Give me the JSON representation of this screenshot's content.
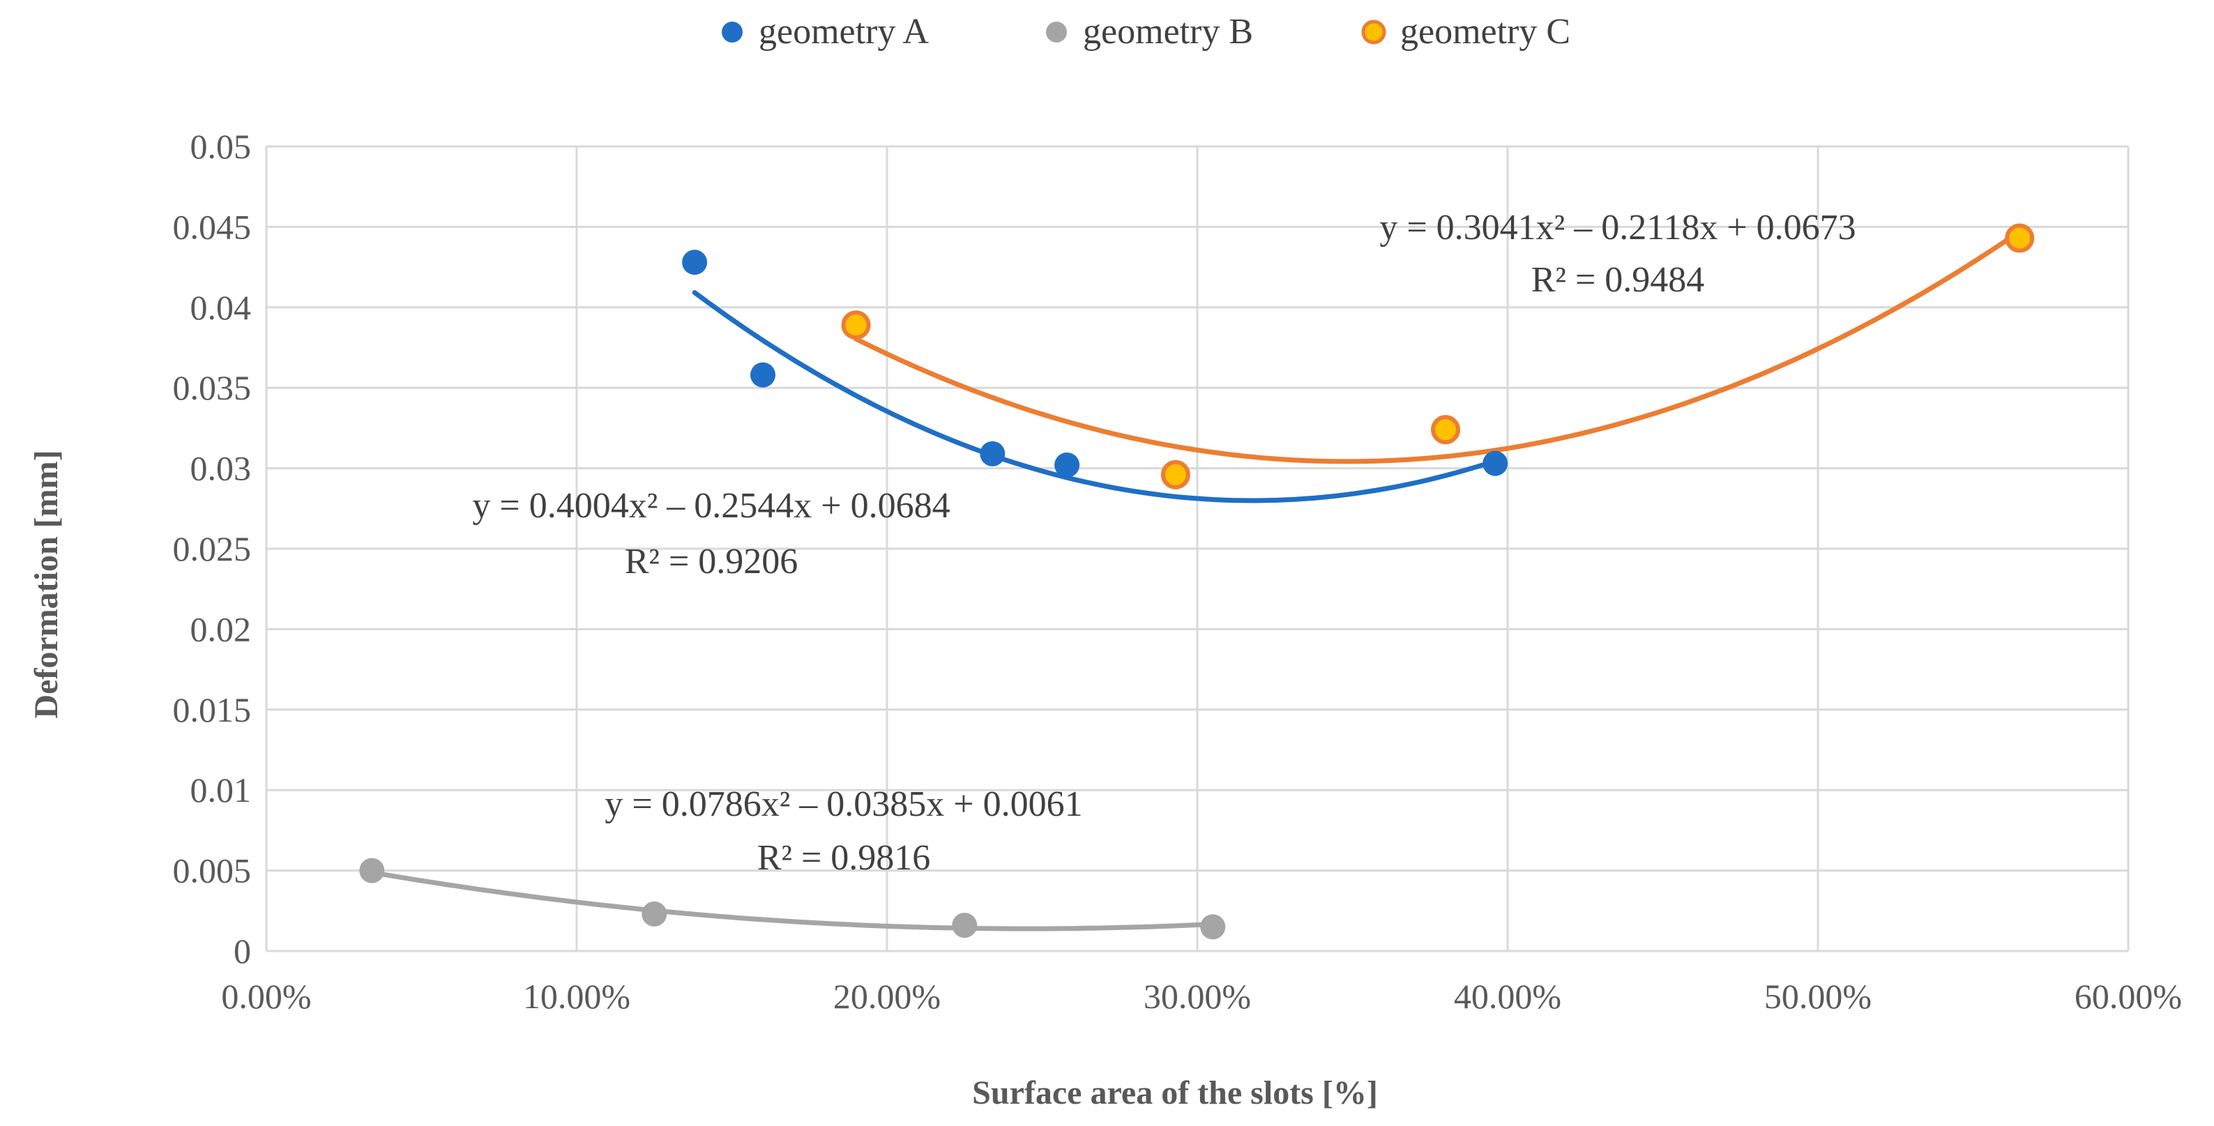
{
  "chart_data": {
    "type": "scatter",
    "title": "",
    "xlabel": "Surface area of the slots [%]",
    "ylabel": "Deformation [mm]",
    "xlim": [
      0,
      0.6
    ],
    "ylim": [
      0,
      0.05
    ],
    "x_ticks": [
      0,
      0.1,
      0.2,
      0.3,
      0.4,
      0.5,
      0.6
    ],
    "x_tick_labels": [
      "0.00%",
      "10.00%",
      "20.00%",
      "30.00%",
      "40.00%",
      "50.00%",
      "60.00%"
    ],
    "y_ticks": [
      0,
      0.005,
      0.01,
      0.015,
      0.02,
      0.025,
      0.03,
      0.035,
      0.04,
      0.045,
      0.05
    ],
    "y_tick_labels": [
      "0",
      "0.005",
      "0.01",
      "0.015",
      "0.02",
      "0.025",
      "0.03",
      "0.035",
      "0.04",
      "0.045",
      "0.05"
    ],
    "grid": true,
    "legend_position": "top-center",
    "series": [
      {
        "name": "geometry A",
        "color": "#1f6fc6",
        "points": [
          [
            0.138,
            0.0428
          ],
          [
            0.16,
            0.0358
          ],
          [
            0.234,
            0.0309
          ],
          [
            0.258,
            0.0302
          ],
          [
            0.396,
            0.0303
          ]
        ],
        "trendline": {
          "type": "poly2",
          "a": 0.4004,
          "b": -0.2544,
          "c": 0.0684,
          "x_range": [
            0.138,
            0.396
          ]
        },
        "equation": "y = 0.4004x² – 0.2544x + 0.0684",
        "r2": "R² = 0.9206"
      },
      {
        "name": "geometry B",
        "color": "#a5a5a5",
        "points": [
          [
            0.034,
            0.005
          ],
          [
            0.125,
            0.0023
          ],
          [
            0.225,
            0.0016
          ],
          [
            0.305,
            0.0015
          ]
        ],
        "trendline": {
          "type": "poly2",
          "a": 0.0786,
          "b": -0.0385,
          "c": 0.0061,
          "x_range": [
            0.034,
            0.305
          ]
        },
        "equation": "y = 0.0786x² – 0.0385x + 0.0061",
        "r2": "R² = 0.9816"
      },
      {
        "name": "geometry C",
        "color": "#ed7d31",
        "marker_fill": "#ffc000",
        "points": [
          [
            0.19,
            0.0389
          ],
          [
            0.293,
            0.0296
          ],
          [
            0.38,
            0.0324
          ],
          [
            0.565,
            0.0443
          ]
        ],
        "trendline": {
          "type": "poly2",
          "a": 0.3041,
          "b": -0.2118,
          "c": 0.0673,
          "x_range": [
            0.19,
            0.565
          ]
        },
        "equation": "y = 0.3041x² – 0.2118x + 0.0673",
        "r2": "R² = 0.9484"
      }
    ]
  }
}
